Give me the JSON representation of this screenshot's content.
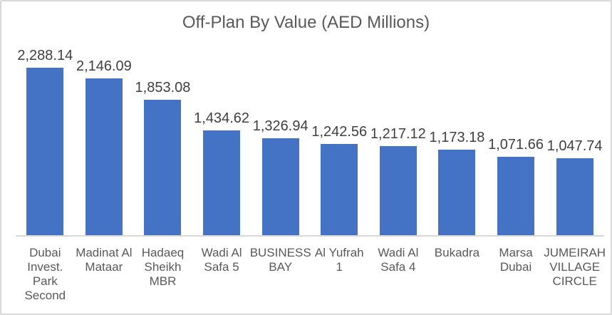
{
  "chart_data": {
    "type": "bar",
    "title": "Off-Plan By Value (AED Millions)",
    "categories": [
      "Dubai Invest. Park Second",
      "Madinat Al Mataar",
      "Hadaeq Sheikh MBR",
      "Wadi Al Safa 5",
      "BUSINESS BAY",
      "Al Yufrah 1",
      "Wadi Al Safa 4",
      "Bukadra",
      "Marsa Dubai",
      "JUMEIRAH VILLAGE CIRCLE"
    ],
    "category_labels_wrapped": [
      "Dubai\nInvest.\nPark\nSecond",
      "Madinat Al\nMataar",
      "Hadaeq\nSheikh\nMBR",
      "Wadi Al\nSafa 5",
      "BUSINESS\nBAY",
      "Al Yufrah 1",
      "Wadi Al\nSafa 4",
      "Bukadra",
      "Marsa\nDubai",
      "JUMEIRAH\nVILLAGE\nCIRCLE"
    ],
    "values": [
      2288.14,
      2146.09,
      1853.08,
      1434.62,
      1326.94,
      1242.56,
      1217.12,
      1173.18,
      1071.66,
      1047.74
    ],
    "labels": [
      "2,288.14",
      "2,146.09",
      "1,853.08",
      "1,434.62",
      "1,326.94",
      "1,242.56",
      "1,217.12",
      "1,173.18",
      "1,071.66",
      "1,047.74"
    ],
    "xlabel": "",
    "ylabel": "",
    "ylim": [
      0,
      2288.14
    ],
    "grid": false,
    "legend": false,
    "bar_color": "#4472c4",
    "axis_line_color": "#d9d9d9",
    "border_color": "#d9d9d9",
    "title_color": "#595959",
    "value_label_color": "#404040",
    "category_label_color": "#595959"
  }
}
